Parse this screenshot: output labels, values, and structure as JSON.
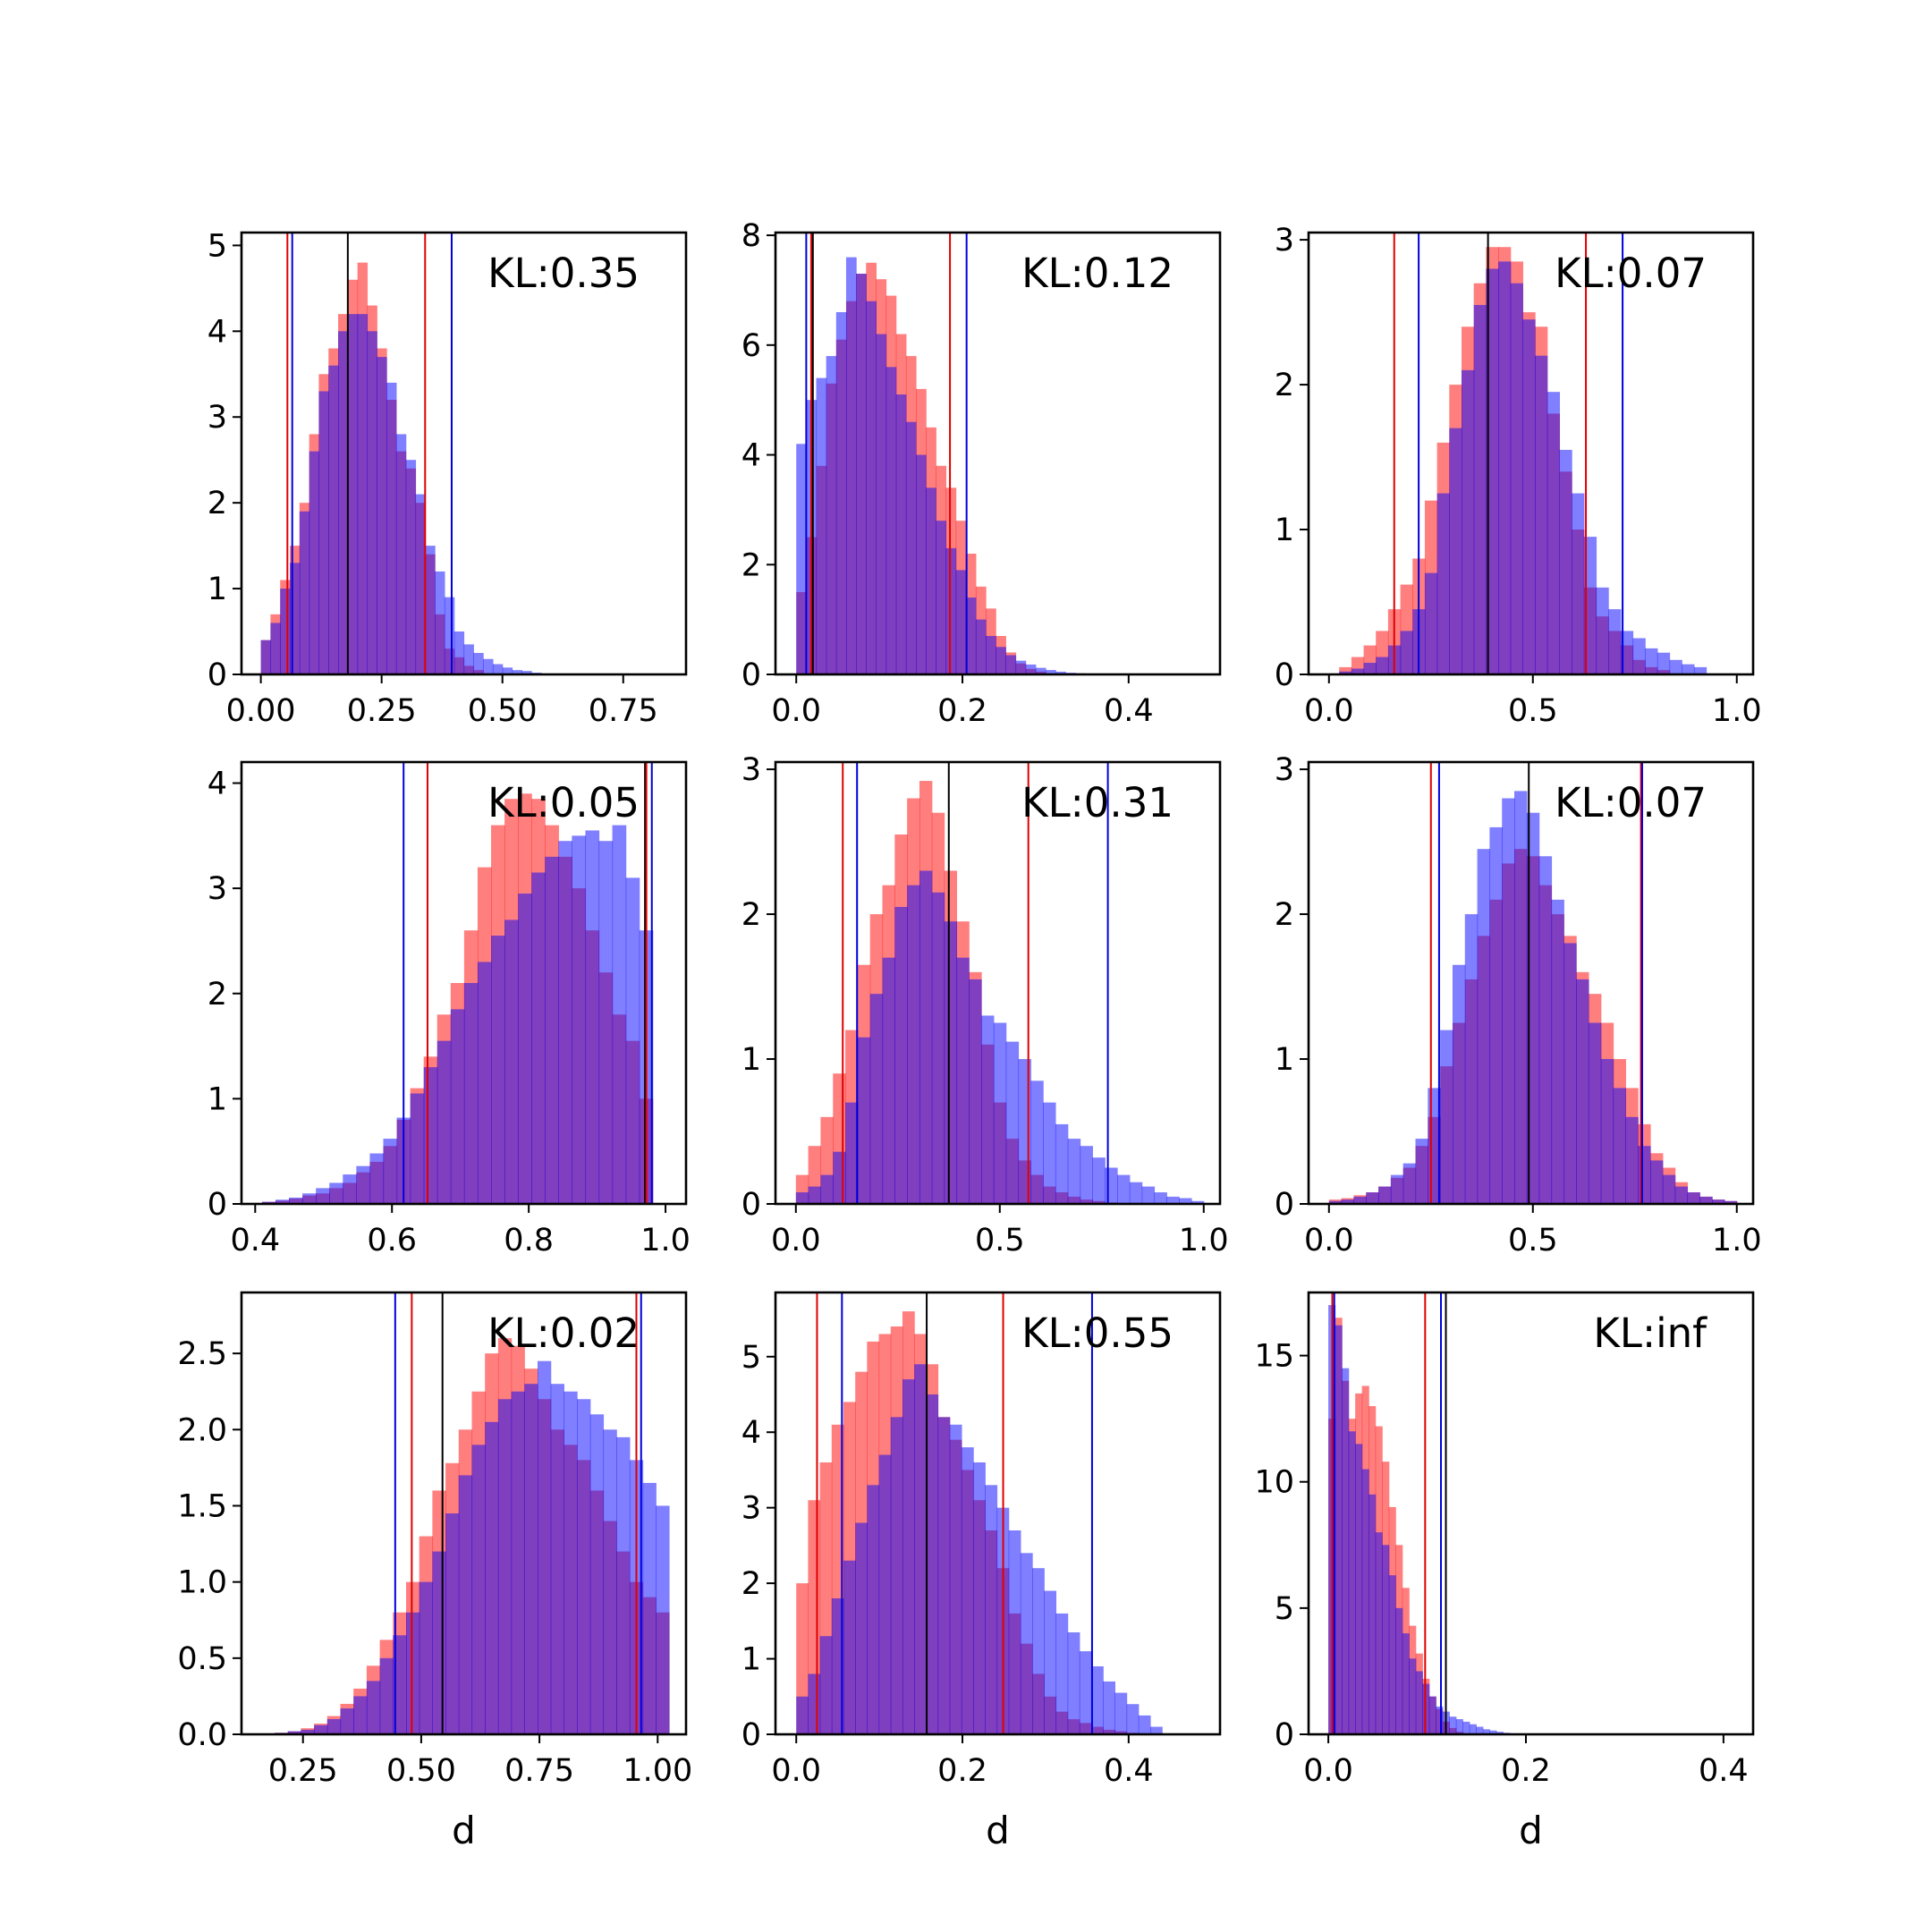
{
  "colors": {
    "red_hist": "#ff0000",
    "blue_hist": "#0000ff",
    "overlap": "#7f3fbf",
    "red_line": "#e00000",
    "blue_line": "#0000dd",
    "black_line": "#000000"
  },
  "chart_data": [
    {
      "type": "bar",
      "kl_label": "KL:0.35",
      "xlabel": "",
      "xlim": [
        -0.04,
        0.88
      ],
      "ylim": [
        0,
        5.15
      ],
      "xticks": [
        0.0,
        0.25,
        0.5,
        0.75
      ],
      "xtick_labels": [
        "0.00",
        "0.25",
        "0.50",
        "0.75"
      ],
      "yticks": [
        0,
        1,
        2,
        3,
        4,
        5
      ],
      "ytick_labels": [
        "0",
        "1",
        "2",
        "3",
        "4",
        "5"
      ],
      "bins": {
        "start": 0.0,
        "width": 0.02
      },
      "series": [
        {
          "color": "red",
          "values": [
            0.4,
            0.7,
            1.1,
            1.5,
            2.0,
            2.8,
            3.5,
            3.8,
            4.2,
            4.6,
            4.8,
            4.3,
            3.8,
            3.2,
            2.6,
            2.4,
            2.0,
            1.4,
            0.7,
            0.3,
            0.2,
            0.1,
            0.05,
            0.0
          ]
        },
        {
          "color": "blue",
          "values": [
            0.4,
            0.6,
            1.0,
            1.3,
            1.9,
            2.6,
            3.3,
            3.6,
            4.0,
            4.2,
            4.2,
            4.0,
            3.7,
            3.4,
            2.8,
            2.5,
            2.1,
            1.5,
            1.2,
            0.9,
            0.5,
            0.35,
            0.25,
            0.18,
            0.12,
            0.08,
            0.05,
            0.04,
            0.02
          ]
        }
      ],
      "vlines": [
        {
          "color": "red",
          "x": 0.055
        },
        {
          "color": "blue",
          "x": 0.065
        },
        {
          "color": "black",
          "x": 0.18
        },
        {
          "color": "red",
          "x": 0.34
        },
        {
          "color": "blue",
          "x": 0.395
        }
      ]
    },
    {
      "type": "bar",
      "kl_label": "KL:0.12",
      "xlabel": "",
      "xlim": [
        -0.025,
        0.51
      ],
      "ylim": [
        0,
        8.05
      ],
      "xticks": [
        0.0,
        0.2,
        0.4
      ],
      "xtick_labels": [
        "0.0",
        "0.2",
        "0.4"
      ],
      "yticks": [
        0,
        2,
        4,
        6,
        8
      ],
      "ytick_labels": [
        "0",
        "2",
        "4",
        "6",
        "8"
      ],
      "bins": {
        "start": 0.0,
        "width": 0.012
      },
      "series": [
        {
          "color": "red",
          "values": [
            1.5,
            2.5,
            3.8,
            5.3,
            6.1,
            6.8,
            7.3,
            7.5,
            7.2,
            6.9,
            6.2,
            5.8,
            5.2,
            4.5,
            3.8,
            3.4,
            2.8,
            2.2,
            1.6,
            1.2,
            0.7,
            0.4,
            0.2,
            0.1,
            0.05
          ]
        },
        {
          "color": "blue",
          "values": [
            4.2,
            5.0,
            5.4,
            5.8,
            6.6,
            7.6,
            7.3,
            6.8,
            6.2,
            5.6,
            5.1,
            4.6,
            4.0,
            3.4,
            2.8,
            2.3,
            1.9,
            1.4,
            1.0,
            0.7,
            0.5,
            0.35,
            0.25,
            0.18,
            0.12,
            0.08,
            0.05,
            0.03,
            0.02
          ]
        }
      ],
      "vlines": [
        {
          "color": "blue",
          "x": 0.012
        },
        {
          "color": "red",
          "x": 0.018
        },
        {
          "color": "black",
          "x": 0.02
        },
        {
          "color": "red",
          "x": 0.185
        },
        {
          "color": "blue",
          "x": 0.205
        }
      ]
    },
    {
      "type": "bar",
      "kl_label": "KL:0.07",
      "xlabel": "",
      "xlim": [
        -0.05,
        1.04
      ],
      "ylim": [
        0,
        3.05
      ],
      "xticks": [
        0.0,
        0.5,
        1.0
      ],
      "xtick_labels": [
        "0.0",
        "0.5",
        "1.0"
      ],
      "yticks": [
        0,
        1,
        2,
        3
      ],
      "ytick_labels": [
        "0",
        "1",
        "2",
        "3"
      ],
      "bins": {
        "start": 0.025,
        "width": 0.03
      },
      "series": [
        {
          "color": "red",
          "values": [
            0.05,
            0.12,
            0.2,
            0.3,
            0.45,
            0.62,
            0.8,
            1.2,
            1.6,
            2.0,
            2.4,
            2.7,
            2.95,
            2.95,
            2.85,
            2.5,
            2.4,
            1.8,
            1.4,
            1.0,
            0.6,
            0.4,
            0.3,
            0.2,
            0.1,
            0.05,
            0.03
          ]
        },
        {
          "color": "blue",
          "values": [
            0.02,
            0.04,
            0.08,
            0.12,
            0.2,
            0.3,
            0.45,
            0.7,
            1.25,
            1.7,
            2.1,
            2.55,
            2.8,
            2.85,
            2.7,
            2.45,
            2.2,
            1.95,
            1.55,
            1.25,
            0.95,
            0.6,
            0.45,
            0.3,
            0.25,
            0.18,
            0.15,
            0.1,
            0.07,
            0.05
          ]
        }
      ],
      "vlines": [
        {
          "color": "red",
          "x": 0.16
        },
        {
          "color": "blue",
          "x": 0.22
        },
        {
          "color": "black",
          "x": 0.39
        },
        {
          "color": "red",
          "x": 0.63
        },
        {
          "color": "blue",
          "x": 0.72
        }
      ]
    },
    {
      "type": "bar",
      "kl_label": "KL:0.05",
      "xlabel": "",
      "xlim": [
        0.38,
        1.03
      ],
      "ylim": [
        0,
        4.2
      ],
      "xticks": [
        0.4,
        0.6,
        0.8,
        1.0
      ],
      "xtick_labels": [
        "0.4",
        "0.6",
        "0.8",
        "1.0"
      ],
      "yticks": [
        0,
        1,
        2,
        3,
        4
      ],
      "ytick_labels": [
        "0",
        "1",
        "2",
        "3",
        "4"
      ],
      "bins": {
        "start": 0.41,
        "width": 0.0197
      },
      "series": [
        {
          "color": "red",
          "values": [
            0.02,
            0.03,
            0.05,
            0.08,
            0.1,
            0.15,
            0.2,
            0.3,
            0.4,
            0.55,
            0.8,
            1.1,
            1.4,
            1.8,
            2.1,
            2.6,
            3.2,
            3.6,
            3.85,
            3.9,
            3.85,
            3.6,
            3.3,
            3.0,
            2.6,
            2.2,
            1.8,
            1.55,
            1.0
          ]
        },
        {
          "color": "blue",
          "values": [
            0.02,
            0.04,
            0.06,
            0.1,
            0.15,
            0.2,
            0.28,
            0.36,
            0.48,
            0.62,
            0.82,
            1.05,
            1.3,
            1.55,
            1.85,
            2.1,
            2.3,
            2.55,
            2.7,
            2.95,
            3.15,
            3.3,
            3.45,
            3.5,
            3.55,
            3.45,
            3.6,
            3.1,
            2.6
          ]
        }
      ],
      "vlines": [
        {
          "color": "blue",
          "x": 0.617
        },
        {
          "color": "red",
          "x": 0.652
        },
        {
          "color": "black",
          "x": 0.97
        },
        {
          "color": "red",
          "x": 0.972
        },
        {
          "color": "blue",
          "x": 0.98
        }
      ]
    },
    {
      "type": "bar",
      "kl_label": "KL:0.31",
      "xlabel": "",
      "xlim": [
        -0.05,
        1.04
      ],
      "ylim": [
        0,
        3.05
      ],
      "xticks": [
        0.0,
        0.5,
        1.0
      ],
      "xtick_labels": [
        "0.0",
        "0.5",
        "1.0"
      ],
      "yticks": [
        0,
        1,
        2,
        3
      ],
      "ytick_labels": [
        "0",
        "1",
        "2",
        "3"
      ],
      "bins": {
        "start": 0.0,
        "width": 0.0303
      },
      "series": [
        {
          "color": "red",
          "values": [
            0.2,
            0.4,
            0.6,
            0.9,
            1.2,
            1.65,
            2.0,
            2.2,
            2.55,
            2.8,
            2.92,
            2.7,
            2.3,
            1.95,
            1.6,
            1.1,
            0.7,
            0.45,
            0.3,
            0.2,
            0.12,
            0.08,
            0.05,
            0.03,
            0.02,
            0.01,
            0.005,
            0.003,
            0.002,
            0.001,
            0.0,
            0.0,
            0.0
          ]
        },
        {
          "color": "blue",
          "values": [
            0.08,
            0.12,
            0.2,
            0.36,
            0.7,
            1.15,
            1.45,
            1.7,
            2.05,
            2.2,
            2.3,
            2.15,
            1.95,
            1.7,
            1.55,
            1.3,
            1.25,
            1.12,
            1.0,
            0.85,
            0.7,
            0.55,
            0.45,
            0.4,
            0.32,
            0.25,
            0.2,
            0.15,
            0.12,
            0.08,
            0.05,
            0.04,
            0.02
          ]
        }
      ],
      "vlines": [
        {
          "color": "red",
          "x": 0.115
        },
        {
          "color": "blue",
          "x": 0.15
        },
        {
          "color": "black",
          "x": 0.375
        },
        {
          "color": "red",
          "x": 0.57
        },
        {
          "color": "blue",
          "x": 0.765
        }
      ]
    },
    {
      "type": "bar",
      "kl_label": "KL:0.07",
      "xlabel": "",
      "xlim": [
        -0.05,
        1.04
      ],
      "ylim": [
        0,
        3.05
      ],
      "xticks": [
        0.0,
        0.5,
        1.0
      ],
      "xtick_labels": [
        "0.0",
        "0.5",
        "1.0"
      ],
      "yticks": [
        0,
        1,
        2,
        3
      ],
      "ytick_labels": [
        "0",
        "1",
        "2",
        "3"
      ],
      "bins": {
        "start": 0.0,
        "width": 0.0303
      },
      "series": [
        {
          "color": "red",
          "values": [
            0.03,
            0.04,
            0.06,
            0.08,
            0.12,
            0.18,
            0.25,
            0.4,
            0.6,
            0.95,
            1.25,
            1.55,
            1.85,
            2.1,
            2.35,
            2.45,
            2.4,
            2.2,
            2.0,
            1.85,
            1.6,
            1.45,
            1.25,
            1.0,
            0.8,
            0.55,
            0.35,
            0.25,
            0.15,
            0.08,
            0.05,
            0.03,
            0.02
          ]
        },
        {
          "color": "blue",
          "values": [
            0.02,
            0.03,
            0.05,
            0.08,
            0.12,
            0.2,
            0.28,
            0.45,
            0.8,
            1.2,
            1.65,
            2.0,
            2.45,
            2.6,
            2.8,
            2.85,
            2.7,
            2.4,
            2.1,
            1.8,
            1.55,
            1.25,
            1.0,
            0.8,
            0.6,
            0.4,
            0.3,
            0.2,
            0.12,
            0.08,
            0.05,
            0.03,
            0.02
          ]
        }
      ],
      "vlines": [
        {
          "color": "red",
          "x": 0.25
        },
        {
          "color": "blue",
          "x": 0.27
        },
        {
          "color": "black",
          "x": 0.49
        },
        {
          "color": "red",
          "x": 0.765
        },
        {
          "color": "blue",
          "x": 0.768
        }
      ]
    },
    {
      "type": "bar",
      "kl_label": "KL:0.02",
      "xlabel": "d",
      "xlim": [
        0.12,
        1.06
      ],
      "ylim": [
        0,
        2.9
      ],
      "xticks": [
        0.25,
        0.5,
        0.75,
        1.0
      ],
      "xtick_labels": [
        "0.25",
        "0.50",
        "0.75",
        "1.00"
      ],
      "yticks": [
        0,
        0.5,
        1.0,
        1.5,
        2.0,
        2.5
      ],
      "ytick_labels": [
        "0.0",
        "0.5",
        "1.0",
        "1.5",
        "2.0",
        "2.5"
      ],
      "bins": {
        "start": 0.19,
        "width": 0.0278
      },
      "series": [
        {
          "color": "red",
          "values": [
            0.01,
            0.02,
            0.04,
            0.07,
            0.12,
            0.2,
            0.3,
            0.45,
            0.62,
            0.8,
            1.0,
            1.3,
            1.6,
            1.78,
            2.0,
            2.25,
            2.5,
            2.6,
            2.55,
            2.4,
            2.2,
            2.0,
            1.9,
            1.8,
            1.6,
            1.4,
            1.2,
            1.0,
            0.9,
            0.8
          ]
        },
        {
          "color": "blue",
          "values": [
            0.01,
            0.02,
            0.03,
            0.06,
            0.1,
            0.17,
            0.25,
            0.35,
            0.5,
            0.65,
            0.8,
            1.0,
            1.2,
            1.45,
            1.7,
            1.9,
            2.05,
            2.2,
            2.25,
            2.3,
            2.45,
            2.3,
            2.25,
            2.2,
            2.1,
            2.0,
            1.95,
            1.8,
            1.65,
            1.5
          ]
        }
      ],
      "vlines": [
        {
          "color": "blue",
          "x": 0.445
        },
        {
          "color": "red",
          "x": 0.48
        },
        {
          "color": "black",
          "x": 0.545
        },
        {
          "color": "red",
          "x": 0.955
        },
        {
          "color": "blue",
          "x": 0.965
        }
      ]
    },
    {
      "type": "bar",
      "kl_label": "KL:0.55",
      "xlabel": "d",
      "xlim": [
        -0.025,
        0.51
      ],
      "ylim": [
        0,
        5.85
      ],
      "xticks": [
        0.0,
        0.2,
        0.4
      ],
      "xtick_labels": [
        "0.0",
        "0.2",
        "0.4"
      ],
      "yticks": [
        0,
        1,
        2,
        3,
        4,
        5
      ],
      "ytick_labels": [
        "0",
        "1",
        "2",
        "3",
        "4",
        "5"
      ],
      "bins": {
        "start": 0.0,
        "width": 0.0142
      },
      "series": [
        {
          "color": "red",
          "values": [
            2.0,
            3.1,
            3.6,
            4.1,
            4.4,
            4.8,
            5.2,
            5.3,
            5.4,
            5.6,
            5.3,
            4.9,
            4.2,
            3.9,
            3.5,
            3.1,
            2.7,
            2.2,
            1.6,
            1.2,
            0.8,
            0.5,
            0.3,
            0.2,
            0.15,
            0.1,
            0.06,
            0.04,
            0.02,
            0.01,
            0.0
          ]
        },
        {
          "color": "blue",
          "values": [
            0.5,
            0.8,
            1.3,
            1.8,
            2.3,
            2.8,
            3.3,
            3.7,
            4.2,
            4.7,
            4.9,
            4.5,
            4.2,
            4.1,
            3.8,
            3.6,
            3.3,
            3.0,
            2.7,
            2.4,
            2.2,
            1.9,
            1.6,
            1.35,
            1.1,
            0.9,
            0.7,
            0.55,
            0.4,
            0.25,
            0.1
          ]
        }
      ],
      "vlines": [
        {
          "color": "red",
          "x": 0.025
        },
        {
          "color": "blue",
          "x": 0.055
        },
        {
          "color": "black",
          "x": 0.157
        },
        {
          "color": "red",
          "x": 0.249
        },
        {
          "color": "blue",
          "x": 0.356
        }
      ]
    },
    {
      "type": "bar",
      "kl_label": "KL:inf",
      "xlabel": "d",
      "xlim": [
        -0.02,
        0.43
      ],
      "ylim": [
        0,
        17.5
      ],
      "xticks": [
        0.0,
        0.2,
        0.4
      ],
      "xtick_labels": [
        "0.0",
        "0.2",
        "0.4"
      ],
      "yticks": [
        0,
        5,
        10,
        15
      ],
      "ytick_labels": [
        "0",
        "5",
        "10",
        "15"
      ],
      "bins": {
        "start": 0.0,
        "width": 0.0068
      },
      "series": [
        {
          "color": "red",
          "values": [
            12.5,
            16.5,
            14.0,
            12.5,
            13.5,
            13.8,
            13.0,
            12.2,
            10.8,
            9.0,
            7.5,
            5.8,
            4.3,
            3.2,
            2.2,
            1.5,
            1.0,
            0.5,
            0.25,
            0.1
          ]
        },
        {
          "color": "blue",
          "values": [
            17.0,
            16.2,
            14.5,
            12.0,
            11.5,
            10.5,
            9.5,
            8.0,
            7.5,
            6.3,
            5.0,
            4.0,
            3.0,
            2.5,
            2.0,
            1.5,
            1.1,
            0.9,
            0.7,
            0.6,
            0.5,
            0.4,
            0.3,
            0.2,
            0.15,
            0.1,
            0.06,
            0.03
          ]
        }
      ],
      "vlines": [
        {
          "color": "red",
          "x": 0.004
        },
        {
          "color": "blue",
          "x": 0.006
        },
        {
          "color": "red",
          "x": 0.098
        },
        {
          "color": "blue",
          "x": 0.114
        },
        {
          "color": "black",
          "x": 0.119
        }
      ]
    }
  ]
}
